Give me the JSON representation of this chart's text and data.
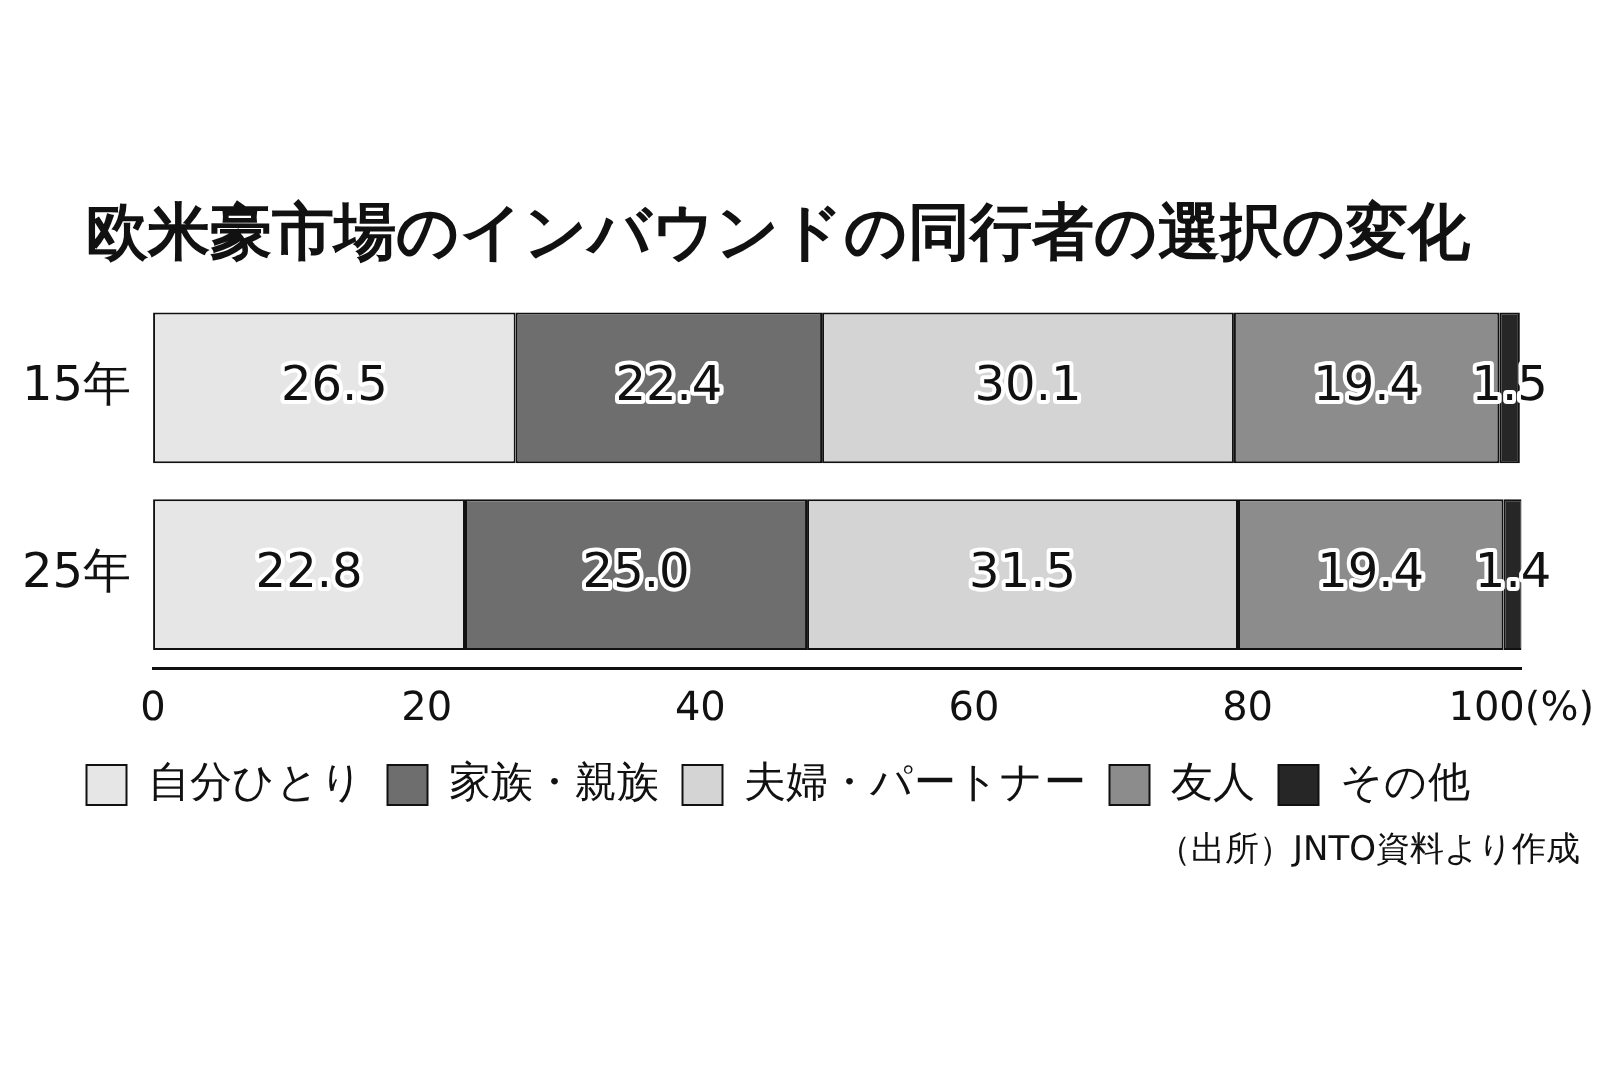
{
  "chart_data": {
    "type": "bar",
    "orientation": "horizontal",
    "stacked": true,
    "title": "欧米豪市場のインバウンドの同行者の選択の変化",
    "categories": [
      "15年",
      "25年"
    ],
    "series": [
      {
        "name": "自分ひとり",
        "color": "#e6e6e6",
        "values": [
          26.5,
          22.8
        ]
      },
      {
        "name": "家族・親族",
        "color": "#6e6e6e",
        "values": [
          22.4,
          25.0
        ],
        "value_labels": [
          "22.4",
          "25.0"
        ]
      },
      {
        "name": "夫婦・パートナー",
        "color": "#d4d4d4",
        "values": [
          30.1,
          31.5
        ]
      },
      {
        "name": "友人",
        "color": "#8c8c8c",
        "values": [
          19.4,
          19.4
        ]
      },
      {
        "name": "その他",
        "color": "#262626",
        "values": [
          1.5,
          1.4
        ]
      }
    ],
    "xlim": [
      0,
      100
    ],
    "xticks": [
      0,
      20,
      40,
      60,
      80,
      {
        "value": 100,
        "label": "100(%)"
      }
    ],
    "grid": false,
    "legend": "bottom",
    "data_labels": true,
    "annotations": [
      "（出所）JNTO資料より作成"
    ]
  }
}
